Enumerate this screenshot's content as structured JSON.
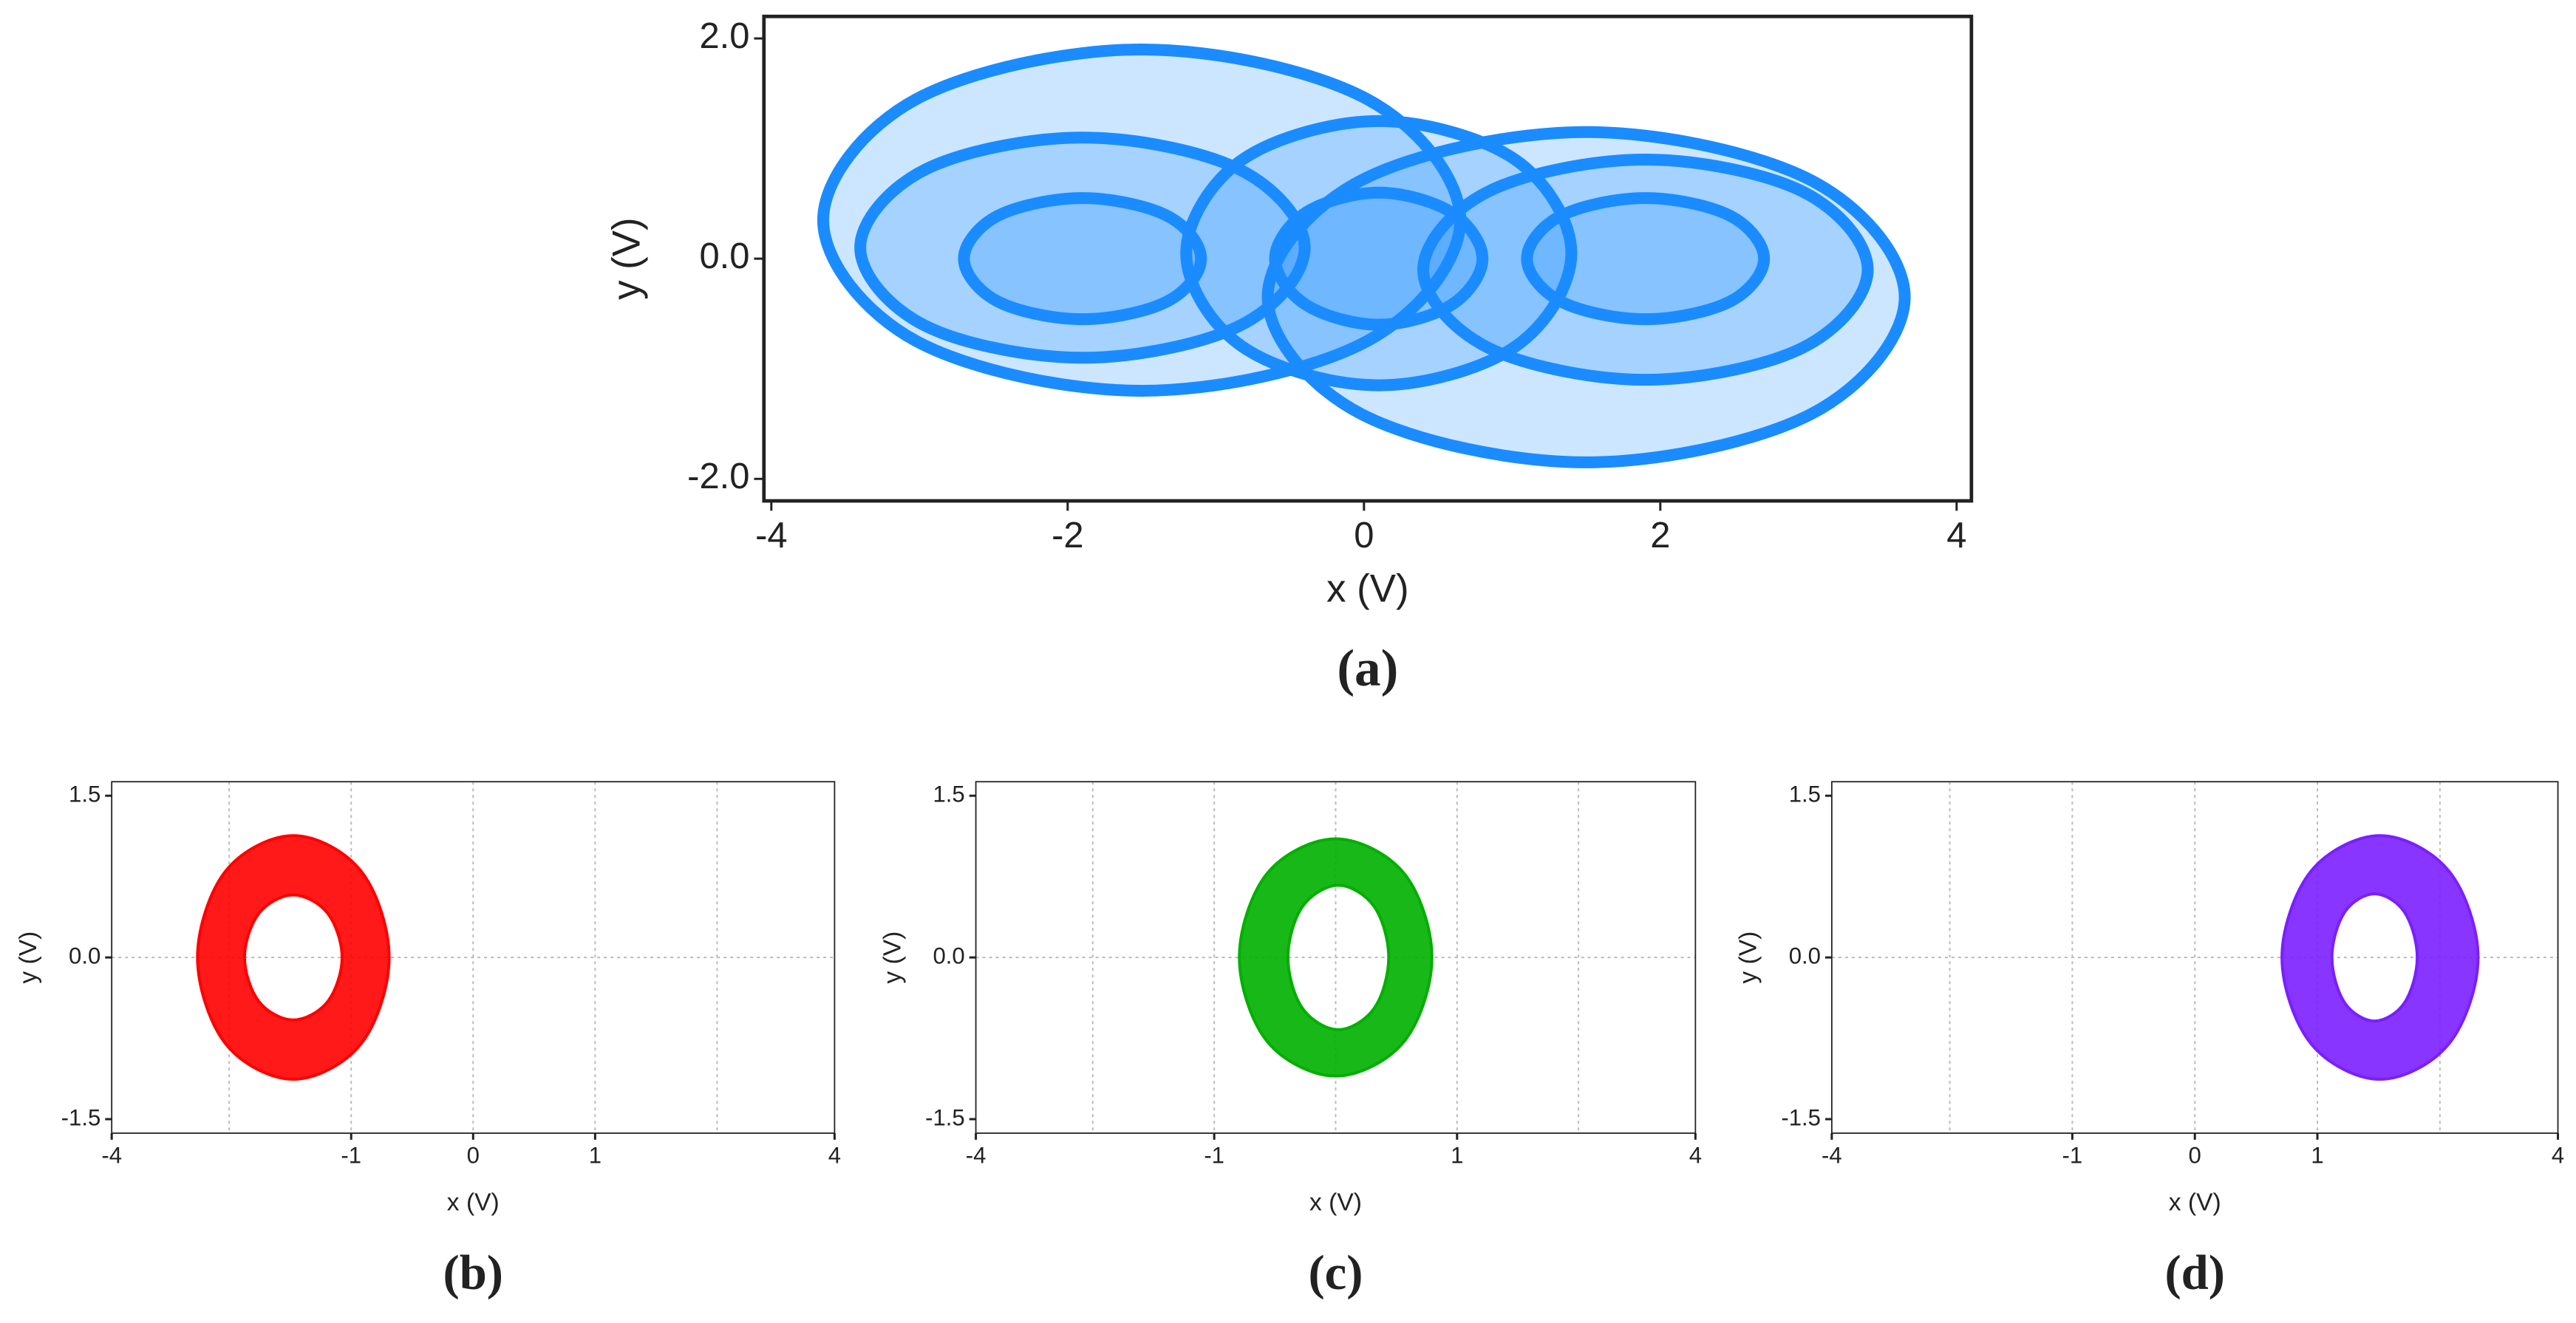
{
  "chart_data": [
    {
      "type": "line",
      "closed": true,
      "caption": "(a)",
      "xlabel": "x (V)",
      "ylabel": "y (V)",
      "xlim": [
        -4.05,
        4.1
      ],
      "ylim": [
        -2.2,
        2.2
      ],
      "xticks": [
        -4,
        -2,
        0,
        2,
        4
      ],
      "yticks": [
        {
          "value": -2,
          "label": "-2.0"
        },
        {
          "value": 0,
          "label": "0.0"
        },
        {
          "value": 2,
          "label": "2.0"
        }
      ],
      "series": [
        {
          "color": "#1a8cff",
          "x": [
            0.65,
            0.02,
            -1.5,
            -3.02,
            -3.65,
            -3.02,
            -1.5,
            0.02
          ],
          "values": [
            0.35,
            1.45,
            1.9,
            1.45,
            0.35,
            -0.75,
            -1.2,
            -0.75
          ]
        },
        {
          "color": "#1a8cff",
          "x": [
            -0.4,
            -0.84,
            -1.9,
            -2.96,
            -3.4,
            -2.96,
            -1.9,
            -0.84
          ],
          "values": [
            0.1,
            0.81,
            1.1,
            0.81,
            0.1,
            -0.61,
            -0.9,
            -0.61
          ]
        },
        {
          "color": "#1a8cff",
          "x": [
            -1.1,
            -1.33,
            -1.9,
            -2.47,
            -2.7,
            -2.47,
            -1.9,
            -1.33
          ],
          "values": [
            0,
            0.39,
            0.55,
            0.39,
            0,
            -0.39,
            -0.55,
            -0.39
          ]
        },
        {
          "color": "#1a8cff",
          "x": [
            3.65,
            3.02,
            1.5,
            -0.02,
            -0.65,
            -0.02,
            1.5,
            3.02
          ],
          "values": [
            -0.35,
            0.71,
            1.15,
            0.71,
            -0.35,
            -1.41,
            -1.85,
            -1.41
          ]
        },
        {
          "color": "#1a8cff",
          "x": [
            3.4,
            2.96,
            1.9,
            0.84,
            0.4,
            0.84,
            1.9,
            2.96
          ],
          "values": [
            -0.1,
            0.61,
            0.9,
            0.61,
            -0.1,
            -0.81,
            -1.1,
            -0.81
          ]
        },
        {
          "color": "#1a8cff",
          "x": [
            2.7,
            2.47,
            1.9,
            1.33,
            1.1,
            1.33,
            1.9,
            2.47
          ],
          "values": [
            0,
            0.39,
            0.55,
            0.39,
            0,
            -0.39,
            -0.55,
            -0.39
          ]
        },
        {
          "color": "#1a8cff",
          "x": [
            1.4,
            1.02,
            0.1,
            -0.82,
            -1.2,
            -0.82,
            0.1,
            1.02
          ],
          "values": [
            0.05,
            0.9,
            1.25,
            0.9,
            0.05,
            -0.8,
            -1.15,
            -0.8
          ]
        },
        {
          "color": "#1a8cff",
          "x": [
            0.8,
            0.59,
            0.1,
            -0.39,
            -0.6,
            -0.39,
            0.1,
            0.59
          ],
          "values": [
            0,
            0.42,
            0.6,
            0.42,
            0,
            -0.42,
            -0.6,
            -0.42
          ]
        }
      ]
    },
    {
      "type": "line",
      "closed": true,
      "band": true,
      "caption": "(b)",
      "xlabel": "x (V)",
      "ylabel": "y (V)",
      "xlim": [
        -4,
        4
      ],
      "ylim": [
        -1.63,
        1.63
      ],
      "xticks": [
        -4,
        {
          "value": -1.35,
          "label": "-1"
        },
        0,
        {
          "value": 1.35,
          "label": "1"
        },
        4
      ],
      "yticks": [
        -1.5,
        {
          "value": 0,
          "label": "0.0"
        },
        1.5
      ],
      "xgrid": [
        -2.7,
        -1.35,
        0,
        1.35,
        2.7
      ],
      "ygrid": [
        0
      ],
      "series": [
        {
          "color": "#ff0000",
          "x": [
            -0.93,
            -1.24,
            -1.99,
            -2.74,
            -3.05,
            -2.74,
            -1.99,
            -1.24
          ],
          "values": [
            0,
            0.8,
            1.13,
            0.8,
            0,
            -0.8,
            -1.13,
            -0.8
          ]
        },
        {
          "color": "#ff0000",
          "x": [
            -1.45,
            -1.61,
            -1.99,
            -2.37,
            -2.53,
            -2.37,
            -1.99,
            -1.61
          ],
          "values": [
            0,
            0.41,
            0.58,
            0.41,
            0,
            -0.41,
            -0.58,
            -0.41
          ]
        }
      ]
    },
    {
      "type": "line",
      "closed": true,
      "band": true,
      "caption": "(c)",
      "xlabel": "x (V)",
      "ylabel": "y (V)",
      "xlim": [
        -4,
        4
      ],
      "ylim": [
        -1.63,
        1.63
      ],
      "xticks": [
        -4,
        {
          "value": -1.35,
          "label": "-1"
        },
        {
          "value": 1.35,
          "label": "1"
        },
        4
      ],
      "yticks": [
        -1.5,
        {
          "value": 0,
          "label": "0.0"
        },
        1.5
      ],
      "xgrid": [
        -2.7,
        -1.35,
        0,
        1.35,
        2.7
      ],
      "ygrid": [
        0
      ],
      "series": [
        {
          "color": "#00b000",
          "x": [
            1.07,
            0.76,
            0,
            -0.76,
            -1.07,
            -0.76,
            0,
            0.76
          ],
          "values": [
            0,
            0.78,
            1.1,
            0.78,
            0,
            -0.78,
            -1.1,
            -0.78
          ]
        },
        {
          "color": "#00b000",
          "x": [
            0.59,
            0.43,
            0.03,
            -0.37,
            -0.53,
            -0.37,
            0.03,
            0.43
          ],
          "values": [
            0,
            0.47,
            0.67,
            0.47,
            0,
            -0.47,
            -0.67,
            -0.47
          ]
        }
      ]
    },
    {
      "type": "line",
      "closed": true,
      "band": true,
      "caption": "(d)",
      "xlabel": "x (V)",
      "ylabel": "y (V)",
      "xlim": [
        -4,
        4
      ],
      "ylim": [
        -1.63,
        1.63
      ],
      "xticks": [
        -4,
        {
          "value": -1.35,
          "label": "-1"
        },
        0,
        {
          "value": 1.35,
          "label": "1"
        },
        4
      ],
      "yticks": [
        -1.5,
        {
          "value": 0,
          "label": "0.0"
        },
        1.5
      ],
      "xgrid": [
        -2.7,
        -1.35,
        0,
        1.35,
        2.7
      ],
      "ygrid": [
        0
      ],
      "series": [
        {
          "color": "#7a1fff",
          "x": [
            3.12,
            2.8,
            2.04,
            1.28,
            0.96,
            1.28,
            2.04,
            2.8
          ],
          "values": [
            0,
            0.8,
            1.13,
            0.8,
            0,
            -0.8,
            -1.13,
            -0.8
          ]
        },
        {
          "color": "#7a1fff",
          "x": [
            2.45,
            2.31,
            1.98,
            1.65,
            1.51,
            1.65,
            1.98,
            2.31
          ],
          "values": [
            0,
            0.42,
            0.59,
            0.42,
            0,
            -0.42,
            -0.59,
            -0.42
          ]
        }
      ]
    }
  ]
}
